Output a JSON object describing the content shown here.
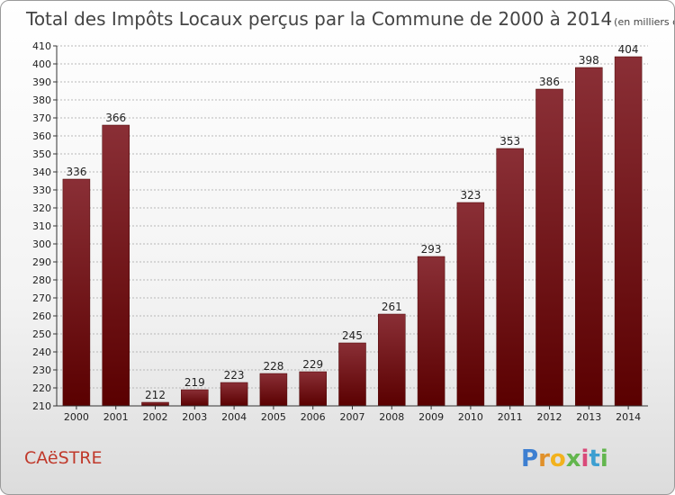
{
  "chart_data": {
    "type": "bar",
    "title": "Total des Impôts Locaux perçus par la Commune de 2000 à 2014",
    "subtitle": "(en milliers d'€)",
    "categories": [
      "2000",
      "2001",
      "2002",
      "2003",
      "2004",
      "2005",
      "2006",
      "2007",
      "2008",
      "2009",
      "2010",
      "2011",
      "2012",
      "2013",
      "2014"
    ],
    "values": [
      336,
      366,
      212,
      219,
      223,
      228,
      229,
      245,
      261,
      293,
      323,
      353,
      386,
      398,
      404
    ],
    "ylim": [
      210,
      410
    ],
    "yticks": [
      210,
      220,
      230,
      240,
      250,
      260,
      270,
      280,
      290,
      300,
      310,
      320,
      330,
      340,
      350,
      360,
      370,
      380,
      390,
      400,
      410
    ],
    "xlabel": "",
    "ylabel": "",
    "grid": true,
    "bar_color": "#7a1a1f"
  },
  "commune": "CAëSTRE",
  "brand": {
    "letters": [
      "P",
      "r",
      "o",
      "x",
      "i",
      "t",
      "i"
    ],
    "colors": [
      "#3d7fd1",
      "#e0912b",
      "#f2b21d",
      "#63b64e",
      "#d94a7a",
      "#3d9fd1",
      "#63b64e"
    ]
  }
}
